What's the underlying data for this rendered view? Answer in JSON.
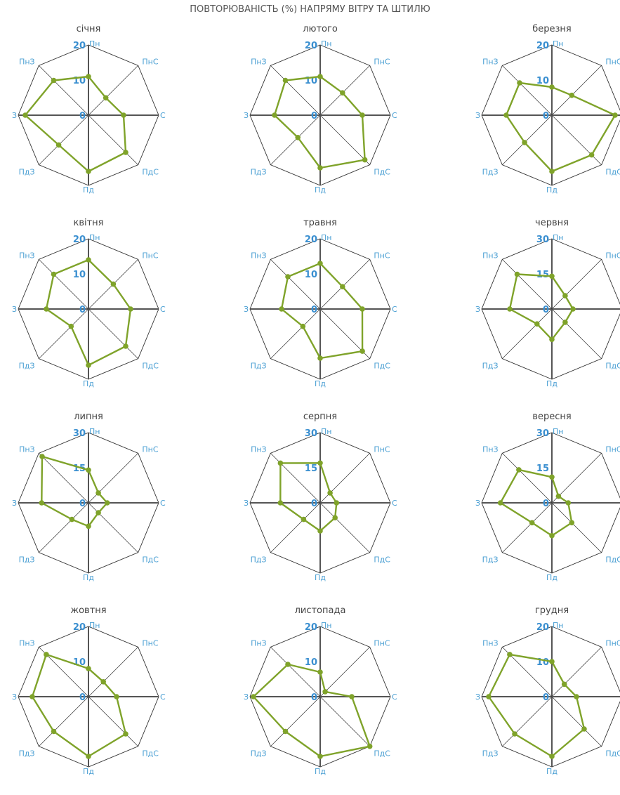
{
  "title": "ПОВТОРЮВАНІСТЬ (%) НАПРЯМУ ВІТРУ ТА ШТИЛЮ",
  "colors": {
    "series": "#7fa32a",
    "axis_label": "#4a9fd3",
    "tick_label": "#3a8fd0",
    "grid": "#333333",
    "axis": "#555555",
    "title": "#555555"
  },
  "chart_data": [
    {
      "type": "radar",
      "title": "січня",
      "directions": [
        "Пн",
        "ПнС",
        "С",
        "ПдС",
        "Пд",
        "ПдЗ",
        "З",
        "ПнЗ"
      ],
      "ticks": [
        "20",
        "10",
        "0"
      ],
      "rmax": 20,
      "values": [
        11,
        7,
        10,
        15,
        16,
        12,
        18,
        14
      ]
    },
    {
      "type": "radar",
      "title": "лютого",
      "directions": [
        "Пн",
        "ПнС",
        "С",
        "ПдС",
        "Пд",
        "ПдЗ",
        "З",
        "ПнЗ"
      ],
      "ticks": [
        "20",
        "10",
        "0"
      ],
      "rmax": 20,
      "values": [
        11,
        9,
        12,
        18,
        15,
        9,
        13,
        14
      ]
    },
    {
      "type": "radar",
      "title": "березня",
      "directions": [
        "Пн",
        "ПнС",
        "С",
        "ПдС",
        "Пд",
        "ПдЗ",
        "З",
        "ПнЗ"
      ],
      "ticks": [
        "20",
        "10",
        "0"
      ],
      "rmax": 20,
      "values": [
        8,
        8,
        18,
        16,
        16,
        11,
        13,
        13
      ]
    },
    {
      "type": "radar",
      "title": "квітня",
      "directions": [
        "Пн",
        "ПнС",
        "С",
        "ПдС",
        "Пд",
        "ПдЗ",
        "З",
        "ПнЗ"
      ],
      "ticks": [
        "20",
        "10",
        "0"
      ],
      "rmax": 20,
      "values": [
        14,
        10,
        12,
        15,
        16,
        7,
        12,
        14
      ]
    },
    {
      "type": "radar",
      "title": "травня",
      "directions": [
        "Пн",
        "ПнС",
        "С",
        "ПдС",
        "Пд",
        "ПдЗ",
        "З",
        "ПнЗ"
      ],
      "ticks": [
        "20",
        "10",
        "0"
      ],
      "rmax": 20,
      "values": [
        13,
        9,
        12,
        17,
        14,
        7,
        11,
        13
      ]
    },
    {
      "type": "radar",
      "title": "червня",
      "directions": [
        "Пн",
        "ПнС",
        "С",
        "ПдС",
        "Пд",
        "ПдЗ",
        "З",
        "ПнЗ"
      ],
      "ticks": [
        "30",
        "15",
        "0"
      ],
      "rmax": 30,
      "values": [
        14,
        8,
        9,
        8,
        13,
        9,
        18,
        21
      ]
    },
    {
      "type": "radar",
      "title": "липня",
      "directions": [
        "Пн",
        "ПнС",
        "С",
        "ПдС",
        "Пд",
        "ПдЗ",
        "З",
        "ПнЗ"
      ],
      "ticks": [
        "30",
        "15",
        "0"
      ],
      "rmax": 30,
      "values": [
        14,
        6,
        8,
        6,
        10,
        10,
        20,
        28
      ]
    },
    {
      "type": "radar",
      "title": "серпня",
      "directions": [
        "Пн",
        "ПнС",
        "С",
        "ПдС",
        "Пд",
        "ПдЗ",
        "З",
        "ПнЗ"
      ],
      "ticks": [
        "30",
        "15",
        "0"
      ],
      "rmax": 30,
      "values": [
        17,
        6,
        7,
        9,
        12,
        10,
        17,
        24
      ]
    },
    {
      "type": "radar",
      "title": "вересня",
      "directions": [
        "Пн",
        "ПнС",
        "С",
        "ПдС",
        "Пд",
        "ПдЗ",
        "З",
        "ПнЗ"
      ],
      "ticks": [
        "30",
        "15",
        "0"
      ],
      "rmax": 30,
      "values": [
        11,
        4,
        7,
        12,
        14,
        12,
        22,
        20
      ]
    },
    {
      "type": "radar",
      "title": "жовтня",
      "directions": [
        "Пн",
        "ПнС",
        "С",
        "ПдС",
        "Пд",
        "ПдЗ",
        "З",
        "ПнЗ"
      ],
      "ticks": [
        "20",
        "10",
        "0"
      ],
      "rmax": 20,
      "values": [
        8,
        6,
        8,
        15,
        17,
        14,
        16,
        17
      ]
    },
    {
      "type": "radar",
      "title": "листопада",
      "directions": [
        "Пн",
        "ПнС",
        "С",
        "ПдС",
        "Пд",
        "ПдЗ",
        "З",
        "ПнЗ"
      ],
      "ticks": [
        "20",
        "10",
        "0"
      ],
      "rmax": 20,
      "values": [
        7,
        2,
        9,
        20,
        17,
        14,
        19,
        13
      ]
    },
    {
      "type": "radar",
      "title": "грудня",
      "directions": [
        "Пн",
        "ПнС",
        "С",
        "ПдС",
        "Пд",
        "ПдЗ",
        "З",
        "ПнЗ"
      ],
      "ticks": [
        "20",
        "10",
        "0"
      ],
      "rmax": 20,
      "values": [
        10,
        5,
        7,
        13,
        17,
        15,
        18,
        17
      ]
    }
  ]
}
